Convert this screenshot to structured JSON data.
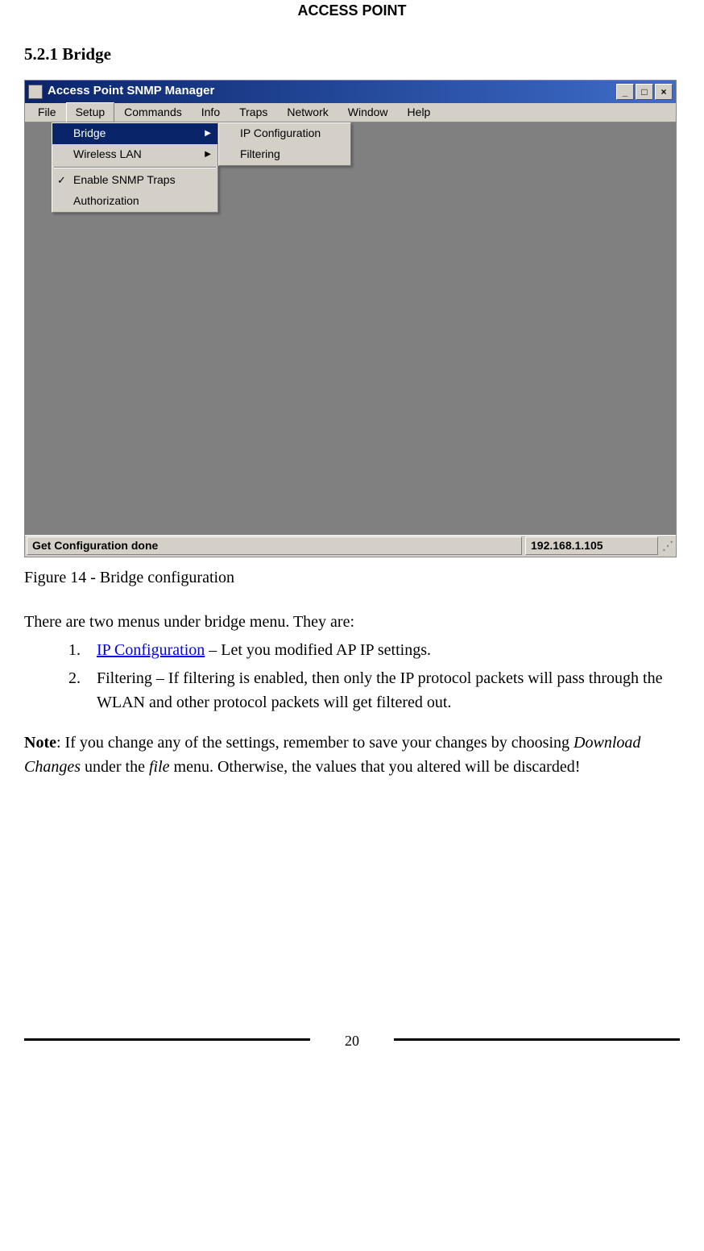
{
  "header": "ACCESS POINT",
  "section": "5.2.1 Bridge",
  "window": {
    "title": "Access Point SNMP Manager",
    "menubar": [
      "File",
      "Setup",
      "Commands",
      "Info",
      "Traps",
      "Network",
      "Window",
      "Help"
    ],
    "active_menu_index": 1,
    "dropdown_main": {
      "items": [
        {
          "label": "Bridge",
          "has_submenu": true,
          "highlighted": true
        },
        {
          "label": "Wireless LAN",
          "has_submenu": true,
          "highlighted": false
        }
      ],
      "separator_after": 1,
      "items2": [
        {
          "label": "Enable SNMP Traps",
          "checked": true
        },
        {
          "label": "Authorization",
          "checked": false
        }
      ]
    },
    "dropdown_sub": {
      "items": [
        {
          "label": "IP Configuration"
        },
        {
          "label": "Filtering"
        }
      ]
    },
    "statusbar": {
      "message": "Get Configuration done",
      "ip": "192.168.1.105"
    },
    "titlebar_buttons": {
      "min": "_",
      "max": "□",
      "close": "×"
    }
  },
  "caption": "Figure 14 - Bridge configuration",
  "intro": "There are two menus under bridge menu. They are:",
  "list": [
    {
      "num": "1.",
      "link": "IP Configuration",
      "rest": " – Let you modified AP IP settings."
    },
    {
      "num": "2.",
      "text": "Filtering – If filtering is enabled, then only the IP protocol packets will pass through the WLAN and other protocol packets will get filtered out."
    }
  ],
  "note": {
    "label": "Note",
    "text1": ": If you change any of the settings, remember to save your changes by choosing ",
    "em1": "Download Changes",
    "text2": " under the ",
    "em2": "file",
    "text3": " menu. Otherwise, the values that you altered will be discarded!"
  },
  "page_number": "20"
}
